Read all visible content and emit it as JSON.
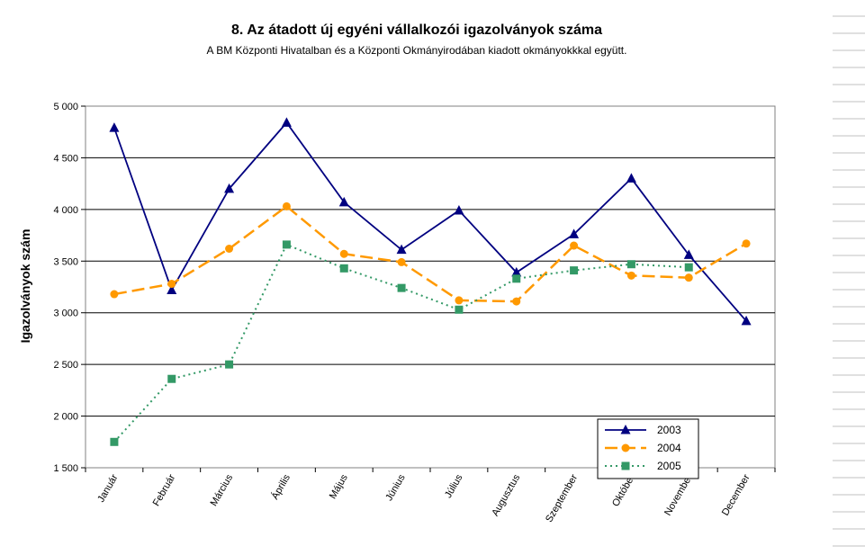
{
  "chart_data": {
    "type": "line",
    "title": "8. Az átadott új egyéni vállalkozói  igazolványok száma",
    "subtitle": "A BM Központi Hivatalban és a Központi Okmányirodában kiadott okmányokkkal együtt.",
    "xlabel": "",
    "ylabel": "Igazolványok szám",
    "categories": [
      "Január",
      "Február",
      "Március",
      "Április",
      "Május",
      "Június",
      "Július",
      "Augusztus",
      "Szeptember",
      "Október",
      "November",
      "December"
    ],
    "ylim": [
      1500,
      5000
    ],
    "yticks": [
      1500,
      2000,
      2500,
      3000,
      3500,
      4000,
      4500,
      5000
    ],
    "ytick_labels": [
      "1 500",
      "2 000",
      "2 500",
      "3 000",
      "3 500",
      "4 000",
      "4 500",
      "5 000"
    ],
    "grid": true,
    "legend_position": "bottom-right",
    "series": [
      {
        "name": "2003",
        "color": "#000080",
        "marker": "triangle",
        "dash": "solid",
        "values": [
          4790,
          3220,
          4200,
          4840,
          4070,
          3610,
          3990,
          3390,
          3760,
          4300,
          3560,
          2920
        ]
      },
      {
        "name": "2004",
        "color": "#FF9900",
        "marker": "circle",
        "dash": "long-dash",
        "values": [
          3180,
          3280,
          3620,
          4030,
          3570,
          3490,
          3120,
          3110,
          3650,
          3360,
          3340,
          3670
        ]
      },
      {
        "name": "2005",
        "color": "#339966",
        "marker": "square",
        "dash": "dotted",
        "values": [
          1750,
          2360,
          2500,
          3660,
          3430,
          3240,
          3030,
          3330,
          3410,
          3470,
          3440,
          null
        ]
      }
    ]
  }
}
